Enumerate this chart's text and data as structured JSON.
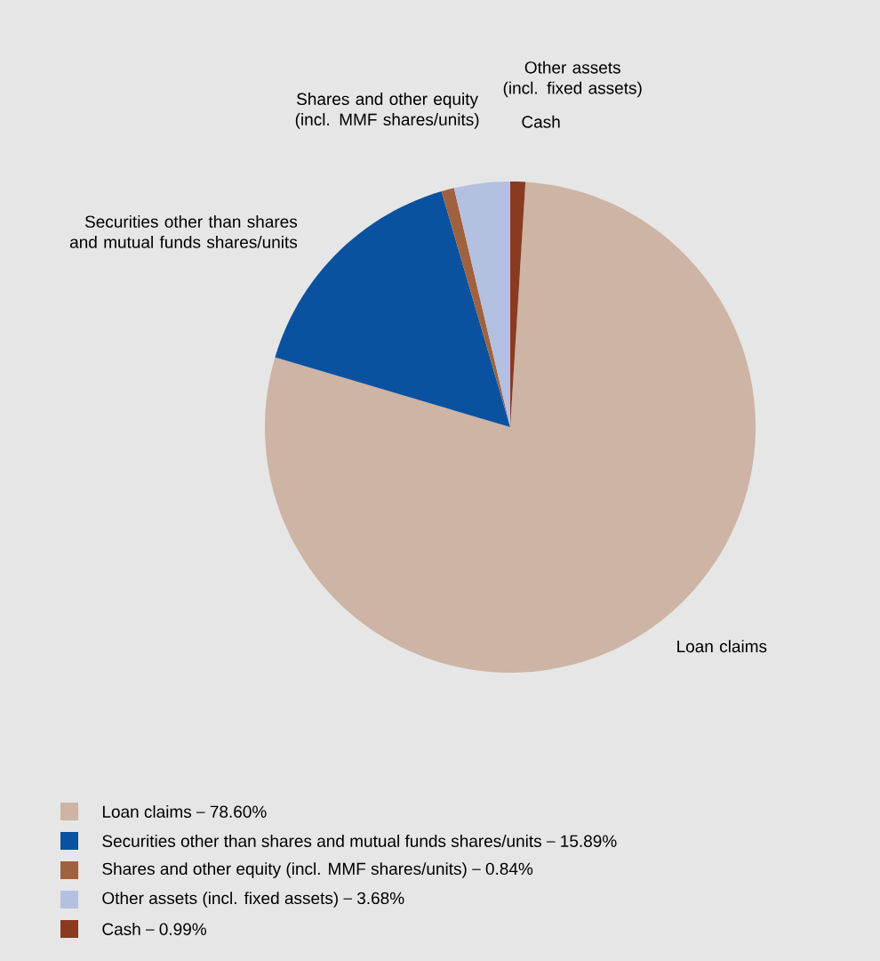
{
  "chart_data": {
    "type": "pie",
    "categories": [
      "Loan claims",
      "Securities other than shares and mutual funds shares/units",
      "Shares and other equity (incl. MMF shares/units)",
      "Other assets (incl. fixed assets)",
      "Cash"
    ],
    "values": [
      78.6,
      15.89,
      0.84,
      3.68,
      0.99
    ],
    "value_labels": [
      "78.60%",
      "15.89%",
      "0.84%",
      "3.68%",
      "0.99%"
    ],
    "colors": [
      "#cdb4a4",
      "#0a52a0",
      "#a0623e",
      "#b4c0e0",
      "#8b3a22"
    ],
    "legend": "bottom"
  }
}
